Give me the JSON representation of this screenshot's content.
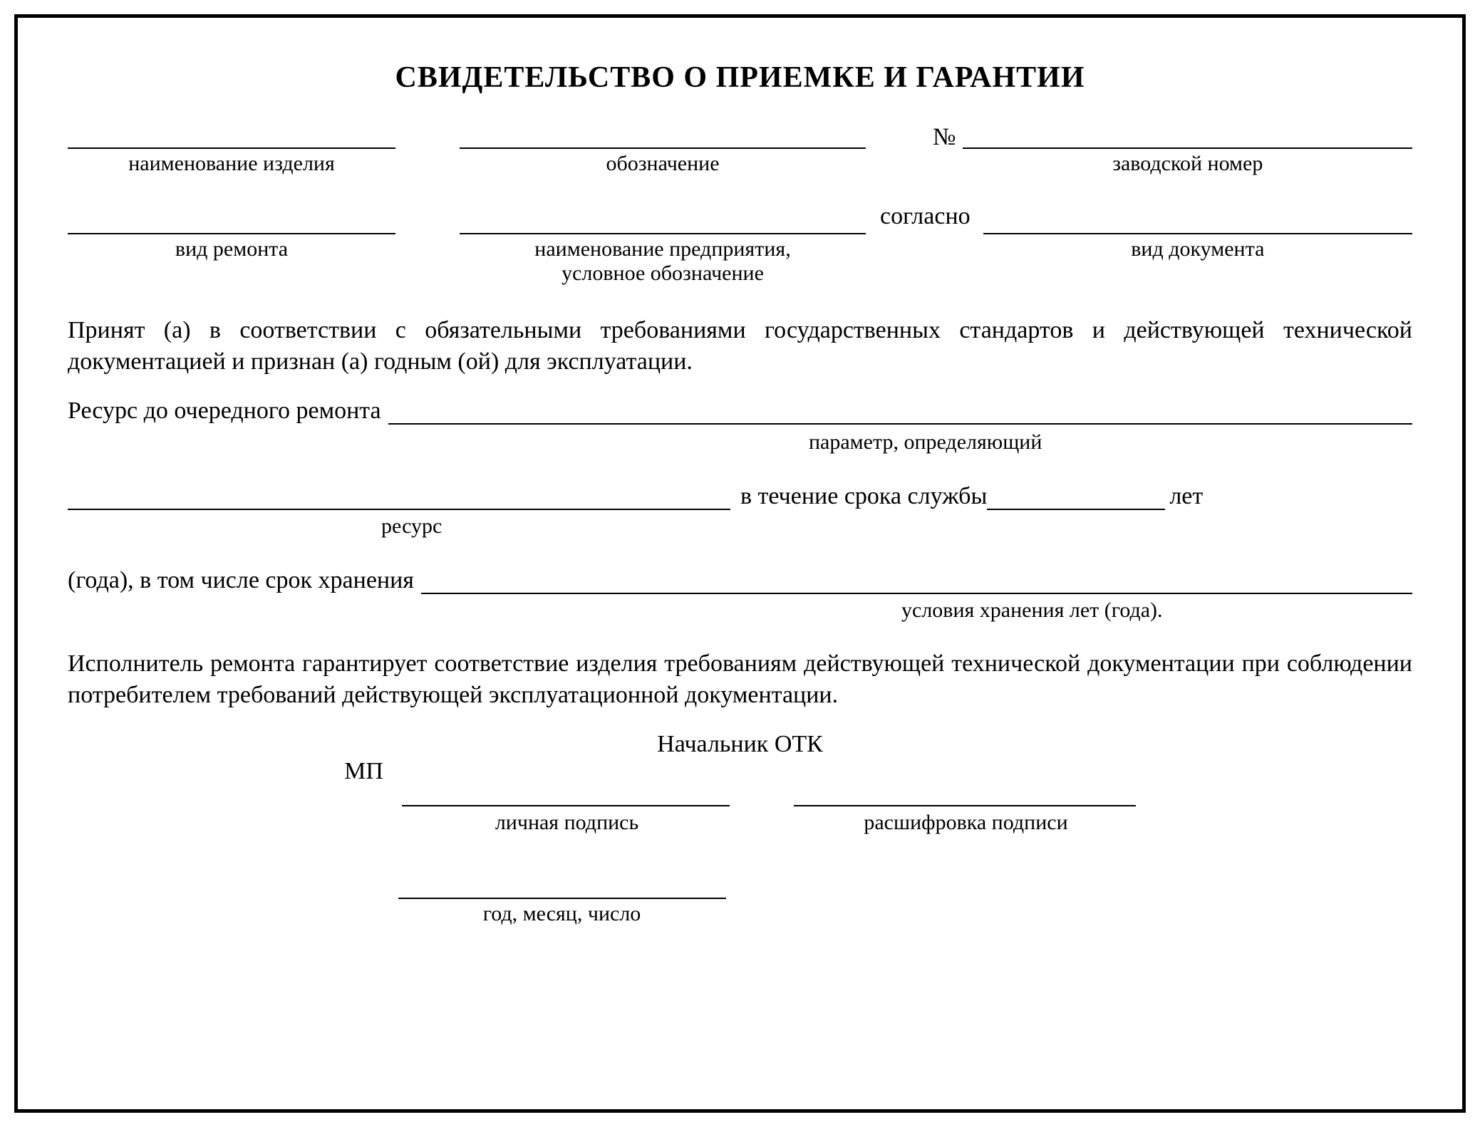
{
  "title": "СВИДЕТЕЛЬСТВО О ПРИЕМКЕ И ГАРАНТИИ",
  "row1": {
    "name_caption": "наименование изделия",
    "designation_caption": "обозначение",
    "number_symbol": "№",
    "serial_caption": "заводской номер"
  },
  "row2": {
    "repair_caption": "вид ремонта",
    "company_caption": "наименование предприятия,\nусловное обозначение",
    "soglasno": "согласно",
    "doc_caption": "вид документа"
  },
  "paragraph1": "Принят (а) в соответствии с обязательными требованиями государственных стандартов и действующей технической документацией и признан (а) годным (ой) для эксплуатации.",
  "resource": {
    "lead": "Ресурс до очередного ремонта",
    "caption1": "параметр, определяющий",
    "mid_text": "в течение срока службы",
    "years": "лет",
    "caption2": "ресурс"
  },
  "storage": {
    "lead": "(года), в том числе срок хранения",
    "caption": "условия хранения лет (года)."
  },
  "paragraph2": "Исполнитель ремонта гарантирует соответствие изделия требованиям действующей технической документации при соблюдении потребителем требований действующей эксплуатационной документации.",
  "signature": {
    "head": "Начальник ОТК",
    "mp": "МП",
    "sign_caption": "личная подпись",
    "decode_caption": "расшифровка подписи",
    "date_caption": "год, месяц, число"
  },
  "colors": {
    "text": "#000000",
    "background": "#ffffff",
    "border": "#000000"
  }
}
